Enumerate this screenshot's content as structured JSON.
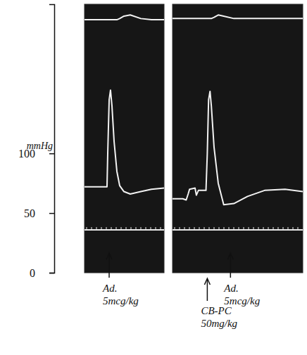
{
  "chart_data": [
    {
      "type": "line",
      "ylabel": "mmHg",
      "ylim": [
        0,
        225
      ],
      "yticks": [
        0,
        50,
        100
      ],
      "xlim": [
        0,
        100
      ],
      "tick_labels": "y",
      "x": [
        0,
        26.5,
        28.3,
        29.2,
        31,
        32.7,
        34.5,
        37.2,
        40.7,
        44.2,
        49.6,
        57.5,
        70.8,
        84.1,
        100
      ],
      "series": [
        {
          "color": "#f2f2f2",
          "values": [
            72,
            72,
            72,
            100,
            145,
            153,
            140,
            110,
            85,
            73,
            68,
            66,
            68,
            70,
            71
          ]
        },
        {
          "color": "#f2f2f2",
          "values": [
            212,
            212,
            212,
            212,
            212,
            212,
            212,
            212,
            212,
            213,
            215,
            216,
            213,
            212,
            212
          ]
        }
      ],
      "annotations": [
        {
          "x": 31,
          "lines": [
            "Ad.",
            "5mcg/kg"
          ]
        }
      ]
    },
    {
      "type": "line",
      "ylim": [
        0,
        225
      ],
      "xlim": [
        0,
        100
      ],
      "tick_labels": false,
      "x": [
        0,
        7.9,
        10.5,
        12,
        13.1,
        17.3,
        18.3,
        19.9,
        25.7,
        26.7,
        27.7,
        28.8,
        29.8,
        31.9,
        35.1,
        39.3,
        47.1,
        57.6,
        70.7,
        86.4,
        100
      ],
      "series": [
        {
          "color": "#f2f2f2",
          "values": [
            62,
            62,
            61,
            66,
            70,
            71,
            65,
            69,
            69,
            100,
            145,
            152,
            140,
            105,
            75,
            57,
            58,
            64,
            69,
            70,
            68
          ]
        },
        {
          "color": "#f2f2f2",
          "values": [
            213,
            213,
            213,
            213,
            213,
            213,
            213,
            213,
            213,
            213,
            213,
            213,
            213,
            214,
            216,
            215,
            213,
            213,
            213,
            213,
            213
          ]
        }
      ],
      "annotations": [
        {
          "x": 26.7,
          "lines": [
            "CB-PC",
            "50mg/kg"
          ]
        },
        {
          "x": 44.5,
          "lines": [
            "Ad.",
            "5mcg/kg"
          ]
        }
      ]
    }
  ]
}
